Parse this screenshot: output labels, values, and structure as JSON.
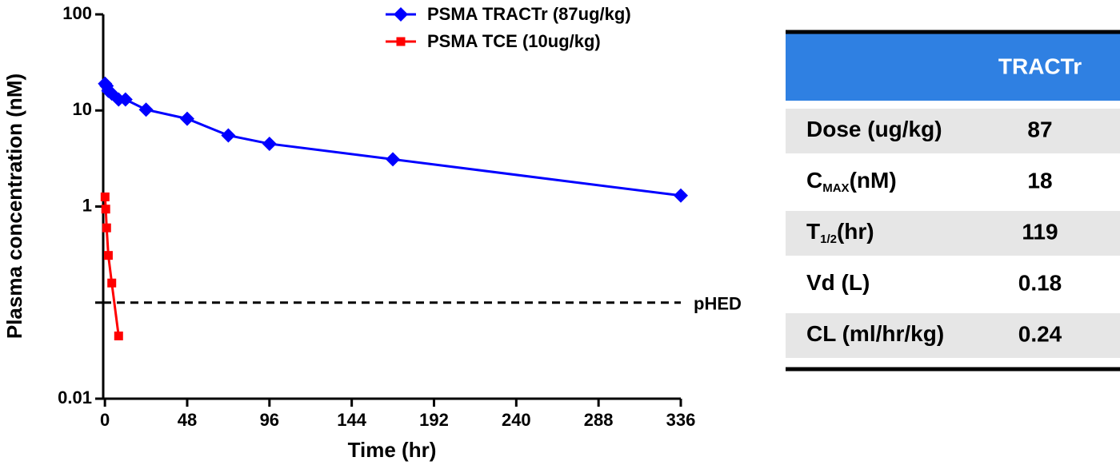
{
  "chart_data": {
    "type": "line",
    "x_label": "Time (hr)",
    "y_label": "Plasma concentration (nM)",
    "log_y": true,
    "xlim": [
      -1,
      336
    ],
    "xticks": [
      0,
      48,
      96,
      144,
      192,
      240,
      288,
      336
    ],
    "ylim": [
      0.01,
      100
    ],
    "yticks": [
      0.01,
      {
        "value": 0.1,
        "label": null
      },
      1,
      10,
      100
    ],
    "legend": "top",
    "series": [
      {
        "name": "PSMA TRACTr (87ug/kg)",
        "color": "#0000ff",
        "marker": "diamond",
        "x": [
          0.083,
          1,
          2,
          4,
          8,
          12,
          24,
          48,
          72,
          96,
          168,
          336
        ],
        "values": [
          19,
          18,
          16,
          15,
          13,
          13,
          10.2,
          8.2,
          5.5,
          4.5,
          3.1,
          1.3
        ]
      },
      {
        "name": "PSMA TCE (10ug/kg)",
        "color": "#ff0000",
        "marker": "square",
        "x": [
          0.083,
          0.5,
          1,
          2,
          4,
          8
        ],
        "values": [
          1.26,
          0.94,
          0.6,
          0.31,
          0.16,
          0.045
        ]
      }
    ],
    "reference_line": {
      "value": 0.1,
      "label": "pHED"
    }
  },
  "table": {
    "header": "TRACTr",
    "rows": [
      {
        "label": [
          "Dose (ug/kg)"
        ],
        "value": 87
      },
      {
        "label": [
          "C",
          "MAX",
          "(nM)"
        ],
        "value": 18
      },
      {
        "label": [
          "T",
          "1/2",
          "(hr)"
        ],
        "value": 119
      },
      {
        "label": [
          "Vd (L)"
        ],
        "value": 0.18
      },
      {
        "label": [
          "CL (ml/hr/kg)"
        ],
        "value": 0.24
      }
    ]
  }
}
